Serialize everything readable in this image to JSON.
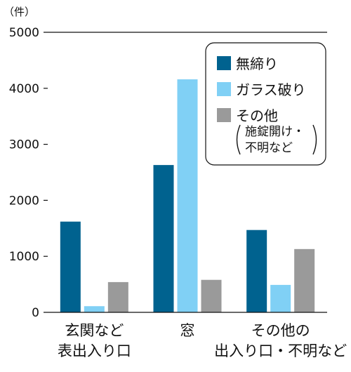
{
  "colors": {
    "series1": "#00628f",
    "series2": "#80d0f5",
    "series3": "#9a9a9a",
    "axis": "#111111"
  },
  "chart_data": {
    "type": "bar",
    "unit_label": "（件）",
    "ylim": [
      0,
      5000
    ],
    "y_ticks": [
      "0",
      "1000",
      "2000",
      "3000",
      "4000",
      "5000"
    ],
    "categories": [
      [
        "玄関など",
        "表出入り口"
      ],
      [
        "窓"
      ],
      [
        "その他の",
        "出入り口・不明など"
      ]
    ],
    "series": [
      {
        "name": "無締り",
        "values": [
          1620,
          2630,
          1470
        ]
      },
      {
        "name": "ガラス破り",
        "values": [
          110,
          4160,
          490
        ]
      },
      {
        "name": "その他",
        "note": [
          "施錠開け・",
          "不明など"
        ],
        "values": [
          540,
          580,
          1130
        ]
      }
    ],
    "legend_position": "top-right",
    "grid": false
  }
}
